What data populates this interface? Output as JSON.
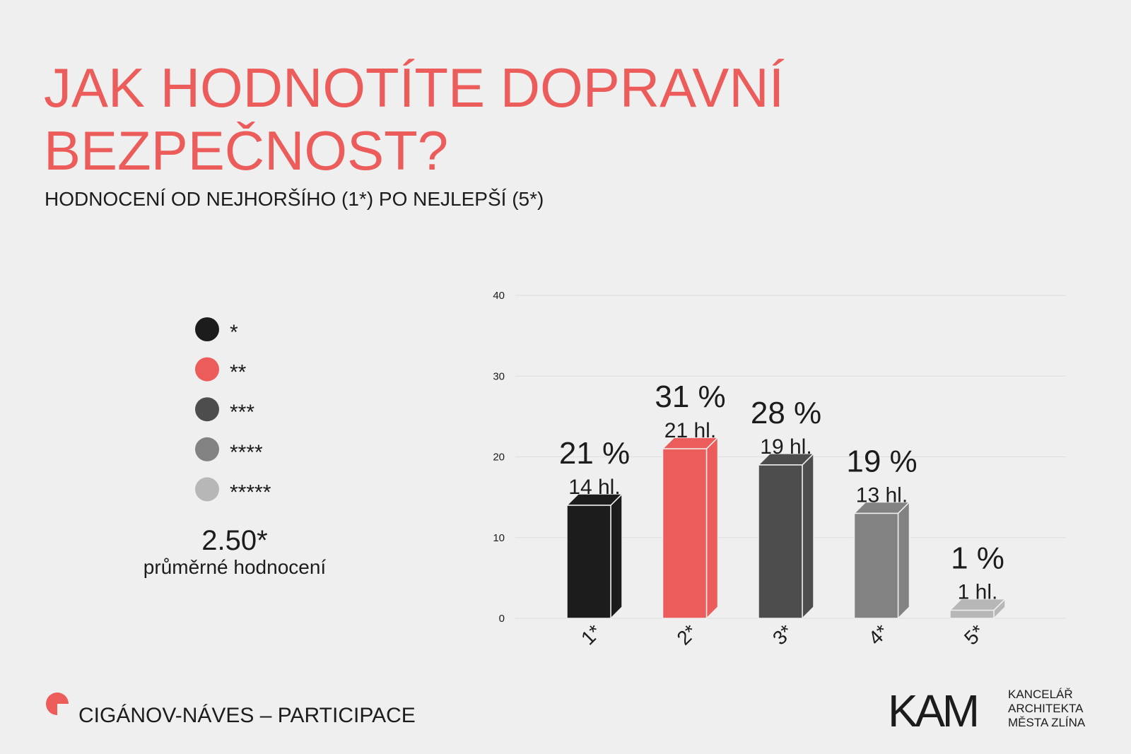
{
  "chart_data": {
    "type": "bar",
    "title": [
      "JAK HODNOTÍTE DOPRAVNÍ",
      "BEZPEČNOST?"
    ],
    "subtitle": "HODNOCENÍ OD NEJHORŠÍHO (1*) PO NEJLEPŠÍ (5*)",
    "categories": [
      "1*",
      "2*",
      "3*",
      "4*",
      "5*"
    ],
    "values": [
      14,
      21,
      19,
      13,
      1
    ],
    "value_labels": [
      "14 hl.",
      "21 hl.",
      "19 hl.",
      "13 hl.",
      "1 hl."
    ],
    "percent_labels": [
      "21 %",
      "31 %",
      "28 %",
      "19 %",
      "1 %"
    ],
    "colors": [
      "#1c1c1c",
      "#eb5c5a",
      "#4d4d4d",
      "#828282",
      "#b7b7b7"
    ],
    "legend": [
      "*",
      "**",
      "***",
      "****",
      "*****"
    ],
    "ylim": [
      0,
      40
    ],
    "yticks": [
      0,
      10,
      20,
      30,
      40
    ],
    "grid": true
  },
  "summary": {
    "value": "2.50*",
    "label": "průměrné hodnocení"
  },
  "footer": "CIGÁNOV-NÁVES – PARTICIPACE",
  "logo": {
    "mark": "KAM",
    "lines": [
      "KANCELÁŘ",
      "ARCHITEKTA",
      "MĚSTA ZLÍNA"
    ]
  }
}
